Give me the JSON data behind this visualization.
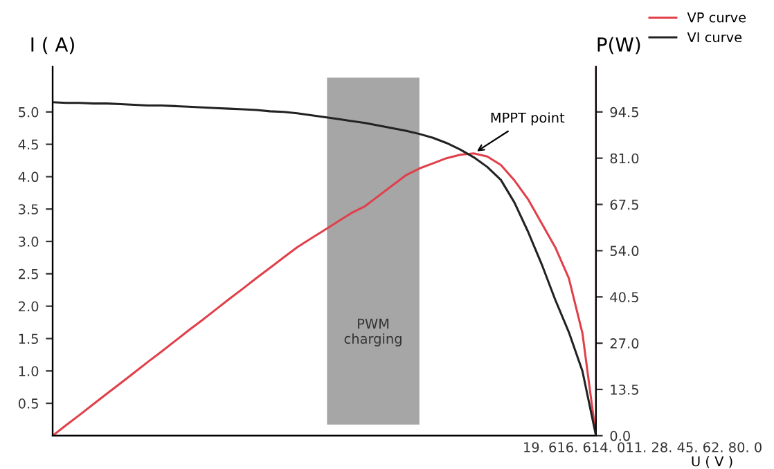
{
  "chart_data": {
    "type": "line",
    "categories": [
      null,
      null,
      null,
      null,
      null,
      null,
      null,
      null,
      null,
      null,
      null,
      null,
      null,
      null,
      null,
      null,
      null,
      null,
      null,
      null,
      null,
      null,
      null,
      null,
      null,
      null,
      null,
      null,
      null,
      null,
      null,
      null,
      null,
      null,
      null,
      null,
      null,
      null,
      null,
      null,
      null
    ],
    "series": [
      {
        "name": "VP curve",
        "color": "#e0404a",
        "axis": "y2",
        "values": [
          0,
          3.1,
          6.1,
          9.2,
          12.3,
          15.3,
          18.4,
          21.5,
          24.5,
          27.6,
          30.7,
          33.7,
          36.8,
          39.9,
          42.9,
          46.0,
          49.0,
          52.0,
          55.0,
          57.5,
          60.0,
          62.5,
          65.0,
          67.0,
          70.0,
          73.0,
          76.0,
          78.0,
          79.5,
          81.0,
          82.0,
          82.4,
          81.5,
          79.0,
          74.5,
          69.0,
          62.0,
          55.0,
          46.0,
          30.0,
          0
        ]
      },
      {
        "name": "VI curve",
        "color": "#222222",
        "values": [
          5.15,
          5.14,
          5.14,
          5.13,
          5.13,
          5.12,
          5.11,
          5.1,
          5.1,
          5.09,
          5.08,
          5.07,
          5.06,
          5.05,
          5.04,
          5.03,
          5.01,
          5.0,
          4.98,
          4.95,
          4.92,
          4.89,
          4.86,
          4.83,
          4.79,
          4.75,
          4.71,
          4.66,
          4.6,
          4.52,
          4.42,
          4.3,
          4.15,
          3.95,
          3.6,
          3.15,
          2.65,
          2.1,
          1.6,
          1.0,
          0
        ]
      }
    ],
    "ylabel": "I ( A)",
    "y2label": "P(W)",
    "xlabel": "U ( V )",
    "ylim": [
      0,
      5.7
    ],
    "yticks": [
      0.5,
      {
        "value": 1,
        "label": "1.0"
      },
      1.5,
      {
        "value": 2,
        "label": "2.0"
      },
      2.5,
      {
        "value": 3,
        "label": "3.0"
      },
      3.5,
      {
        "value": 4,
        "label": "4.0"
      },
      4.5,
      {
        "value": 5,
        "label": "5.0"
      }
    ],
    "y2lim": [
      0,
      107.73
    ],
    "y2ticks": [
      {
        "value": 0,
        "label": "0.0"
      },
      13.5,
      {
        "value": 27,
        "label": "27.0"
      },
      40.5,
      {
        "value": 54,
        "label": "54.0"
      },
      67.5,
      {
        "value": 81,
        "label": "81.0"
      },
      94.5
    ],
    "annotations": [
      "MPPT point",
      "19. 616. 614. 011. 28. 45. 62. 80. 0",
      "PWM\ncharging"
    ],
    "legend": "top right",
    "grid": false,
    "marker": "none",
    "line_style": "solid"
  }
}
